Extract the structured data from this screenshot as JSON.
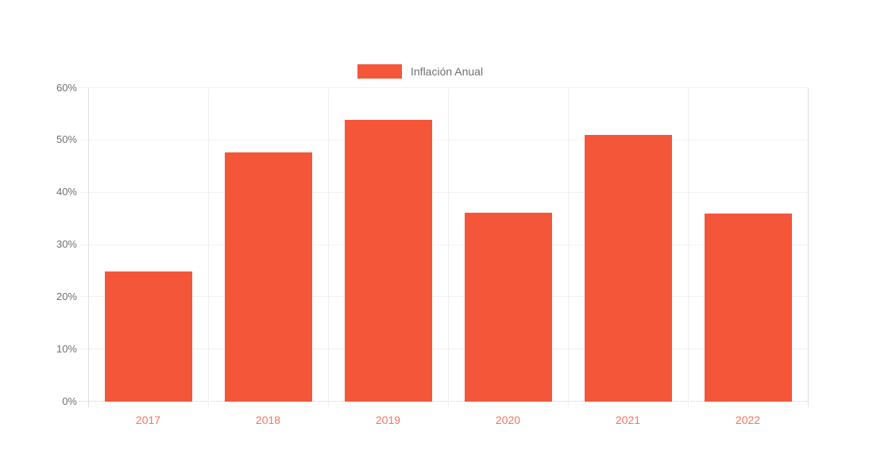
{
  "chart_data": {
    "type": "bar",
    "title": "",
    "categories": [
      "2017",
      "2018",
      "2019",
      "2020",
      "2021",
      "2022"
    ],
    "series": [
      {
        "name": "Inflación Anual",
        "values": [
          24.8,
          47.6,
          53.8,
          36.1,
          50.9,
          36.0
        ]
      }
    ],
    "xlabel": "",
    "ylabel": "",
    "ylim": [
      0,
      60
    ],
    "y_tick_step": 10,
    "grid": true,
    "legend_position": "top-center"
  },
  "legend": {
    "label": "Inflación Anual"
  },
  "y_axis": {
    "tick_labels": [
      "0%",
      "10%",
      "20%",
      "30%",
      "40%",
      "50%",
      "60%"
    ]
  },
  "x_axis": {
    "tick_labels": [
      "2017",
      "2018",
      "2019",
      "2020",
      "2021",
      "2022"
    ]
  },
  "colors": {
    "bar": "#F4563A",
    "x_label": "#F9735D",
    "y_label": "#707070",
    "legend_text": "#707070",
    "gridline": "#F2F2F2",
    "vgridline": "#F0F0F0",
    "axis_line": "#E0E0E0",
    "baseline": "#CFCFCF",
    "background": "#FFFFFF"
  }
}
